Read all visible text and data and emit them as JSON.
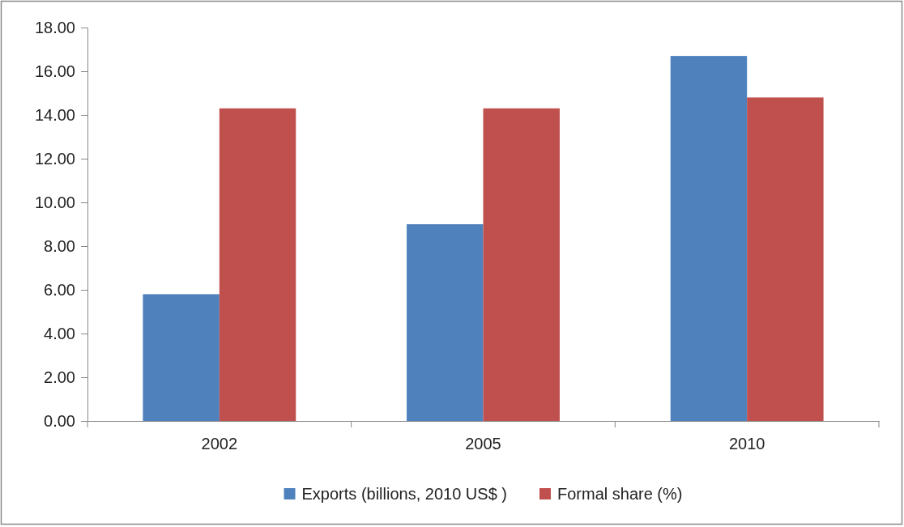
{
  "chart_data": {
    "type": "bar",
    "categories": [
      "2002",
      "2005",
      "2010"
    ],
    "series": [
      {
        "name": "Exports (billions, 2010 US$ )",
        "color": "#4f81bd",
        "values": [
          5.8,
          9.0,
          16.7
        ]
      },
      {
        "name": "Formal share (%)",
        "color": "#c0504d",
        "values": [
          14.3,
          14.3,
          14.8
        ]
      }
    ],
    "ylim": [
      0,
      18
    ],
    "yticks": [
      {
        "value": 0,
        "label": "0.00"
      },
      {
        "value": 2,
        "label": "2.00"
      },
      {
        "value": 4,
        "label": "4.00"
      },
      {
        "value": 6,
        "label": "6.00"
      },
      {
        "value": 8,
        "label": "8.00"
      },
      {
        "value": 10,
        "label": "10.00"
      },
      {
        "value": 12,
        "label": "12.00"
      },
      {
        "value": 14,
        "label": "14.00"
      },
      {
        "value": 16,
        "label": "16.00"
      },
      {
        "value": 18,
        "label": "18.00"
      }
    ],
    "grid": false,
    "legend": "bottom"
  }
}
